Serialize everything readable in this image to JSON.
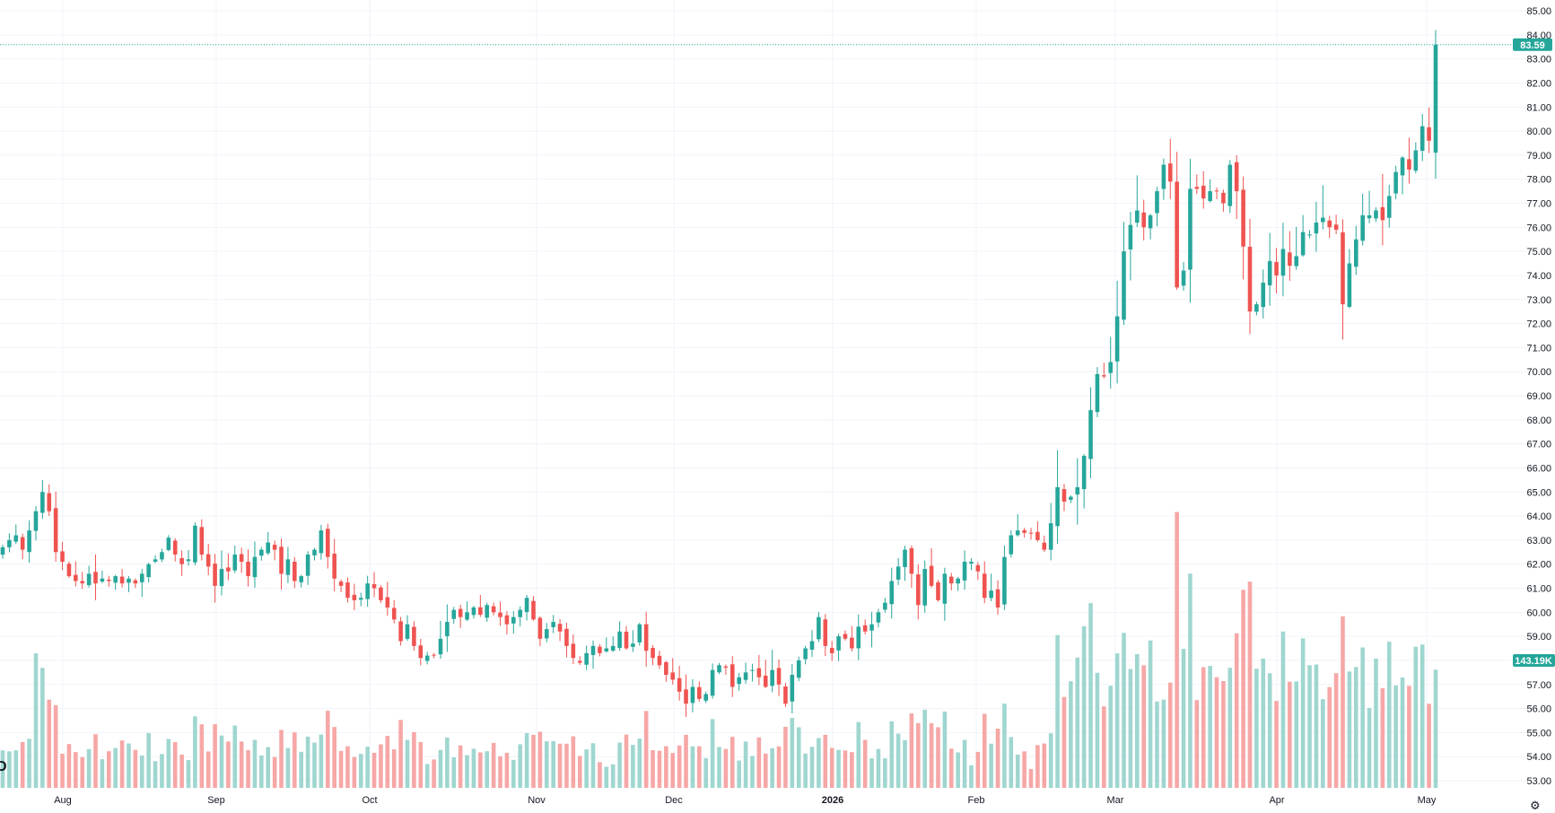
{
  "colors": {
    "up": "#26a69a",
    "down": "#ef5350",
    "up_vol": "#9fd6d0",
    "down_vol": "#f6a7a6",
    "grid": "#f0f3fa",
    "text": "#131722"
  },
  "chart_data": {
    "type": "candlestick",
    "x_labels": [
      "Aug",
      "Sep",
      "Oct",
      "Nov",
      "Dec",
      "2026",
      "Feb",
      "Mar",
      "Apr",
      "May"
    ],
    "ylim": [
      53,
      85
    ],
    "y_ticks": [
      "53.00",
      "54.00",
      "55.00",
      "56.00",
      "57.00",
      "58.00",
      "59.00",
      "60.00",
      "61.00",
      "62.00",
      "63.00",
      "64.00",
      "65.00",
      "66.00",
      "67.00",
      "68.00",
      "69.00",
      "70.00",
      "71.00",
      "72.00",
      "73.00",
      "74.00",
      "75.00",
      "76.00",
      "77.00",
      "78.00",
      "79.00",
      "80.00",
      "81.00",
      "82.00",
      "83.00",
      "84.00",
      "85.00"
    ],
    "last_price": "83.59",
    "last_volume": "143.19K",
    "closes": [
      62.7,
      63.0,
      63.2,
      62.6,
      63.4,
      64.2,
      65.0,
      64.2,
      62.5,
      62.1,
      61.5,
      61.3,
      61.2,
      61.6,
      61.2,
      61.4,
      61.3,
      61.5,
      61.2,
      61.4,
      61.2,
      61.6,
      62.0,
      62.2,
      62.5,
      63.1,
      62.4,
      62.0,
      62.2,
      63.6,
      62.4,
      61.9,
      61.1,
      61.8,
      61.7,
      62.4,
      62.1,
      61.5,
      62.3,
      62.6,
      62.9,
      62.6,
      61.6,
      62.2,
      61.3,
      61.5,
      62.4,
      62.6,
      63.4,
      62.3,
      61.4,
      61.1,
      60.6,
      60.5,
      60.6,
      61.2,
      61.0,
      60.5,
      60.2,
      59.7,
      58.8,
      59.5,
      58.6,
      58.1,
      58.2,
      58.2,
      58.9,
      59.6,
      60.1,
      59.8,
      60.0,
      60.2,
      59.9,
      60.3,
      60.0,
      59.8,
      59.5,
      59.8,
      60.1,
      60.6,
      59.7,
      58.9,
      59.3,
      59.6,
      59.2,
      58.6,
      58.1,
      57.9,
      58.3,
      58.6,
      58.3,
      58.5,
      58.6,
      59.2,
      58.5,
      58.7,
      59.5,
      58.4,
      58.1,
      57.8,
      57.4,
      57.2,
      56.7,
      56.2,
      56.9,
      56.4,
      56.6,
      57.6,
      57.8,
      57.7,
      56.9,
      57.3,
      57.5,
      57.6,
      57.3,
      56.9,
      57.6,
      57.0,
      56.2,
      57.4,
      58.0,
      58.5,
      58.8,
      59.8,
      58.6,
      58.3,
      59.0,
      58.9,
      58.5,
      59.4,
      59.2,
      59.5,
      60.0,
      60.4,
      61.3,
      61.9,
      62.6,
      61.6,
      60.3,
      61.8,
      61.1,
      60.5,
      61.6,
      61.2,
      61.4,
      62.1,
      62.1,
      61.7,
      60.6,
      60.9,
      60.2,
      62.3,
      63.2,
      63.4,
      63.3,
      63.3,
      63.0,
      62.6,
      63.7,
      65.2,
      64.6,
      64.8,
      65.2,
      66.5,
      68.4,
      69.9,
      69.8,
      70.4,
      72.3,
      75.0,
      76.1,
      76.7,
      76.0,
      76.5,
      77.5,
      78.6,
      77.9,
      73.5,
      74.2,
      77.6,
      77.6,
      77.2,
      77.5,
      77.5,
      77.0,
      78.6,
      77.5,
      75.2,
      72.5,
      72.8,
      73.7,
      74.6,
      74.0,
      75.1,
      74.4,
      74.8,
      75.8,
      75.7,
      76.2,
      76.4,
      76.0,
      75.9,
      72.8,
      74.5,
      75.5,
      76.5,
      76.5,
      76.7,
      76.3,
      77.3,
      78.3,
      78.9,
      78.4,
      79.2,
      80.2,
      79.6,
      83.59
    ],
    "volume_min_k": 0,
    "volume_max_k": 250
  }
}
